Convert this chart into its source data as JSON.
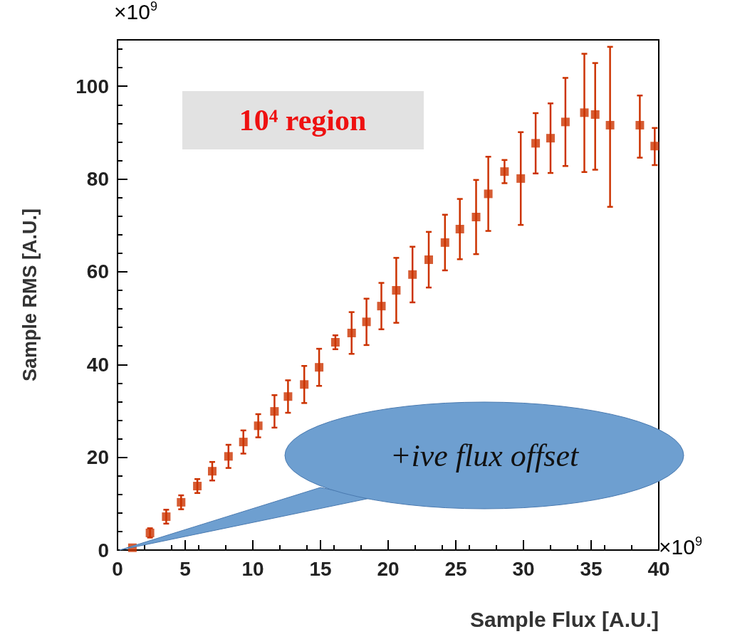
{
  "chart_data": {
    "type": "scatter",
    "xlabel": "Sample Flux [A.U.]",
    "ylabel": "Sample RMS [A.U.]",
    "xlim": [
      0,
      40
    ],
    "xticks": [
      0,
      5,
      10,
      15,
      20,
      25,
      30,
      35,
      40
    ],
    "ylim": [
      0,
      110
    ],
    "yticks": [
      0,
      20,
      40,
      60,
      80,
      100
    ],
    "marker": "square",
    "annotations": [
      "10⁴ region",
      "+ive flux offset",
      "×10$^{9}$",
      "×10$^{9}$"
    ],
    "series": [
      {
        "color": "#cc3300",
        "x": [
          1.1,
          2.4,
          3.6,
          4.7,
          5.9,
          7.0,
          8.2,
          9.3,
          10.4,
          11.6,
          12.6,
          13.8,
          14.9,
          16.1,
          17.3,
          18.4,
          19.5,
          20.6,
          21.8,
          23.0,
          24.2,
          25.3,
          26.5,
          27.4,
          28.6,
          29.8,
          30.9,
          32.0,
          33.1,
          34.5,
          35.3,
          36.4,
          38.6,
          39.7
        ],
        "values": [
          0.5,
          3.7,
          7.2,
          10.3,
          13.8,
          17.0,
          20.2,
          23.3,
          26.8,
          29.9,
          33.1,
          35.7,
          39.4,
          44.8,
          46.8,
          49.2,
          52.6,
          56.0,
          59.4,
          62.6,
          66.3,
          69.2,
          71.8,
          76.8,
          81.6,
          80.1,
          87.7,
          88.8,
          92.3,
          94.3,
          93.9,
          91.6,
          91.6,
          87.1
        ],
        "errors": [
          null,
          1,
          1.5,
          1.5,
          1.5,
          2,
          2.5,
          2.5,
          2.5,
          3.5,
          3.5,
          4,
          4,
          1.5,
          4.5,
          5,
          5,
          7,
          6,
          6,
          6,
          6.5,
          8,
          8,
          2.5,
          10,
          6.5,
          7.5,
          9.5,
          [
            81.5,
            107
          ],
          [
            82,
            105
          ],
          [
            74,
            108.5
          ],
          [
            84.6,
            98
          ],
          [
            83,
            91
          ]
        ]
      }
    ]
  }
}
